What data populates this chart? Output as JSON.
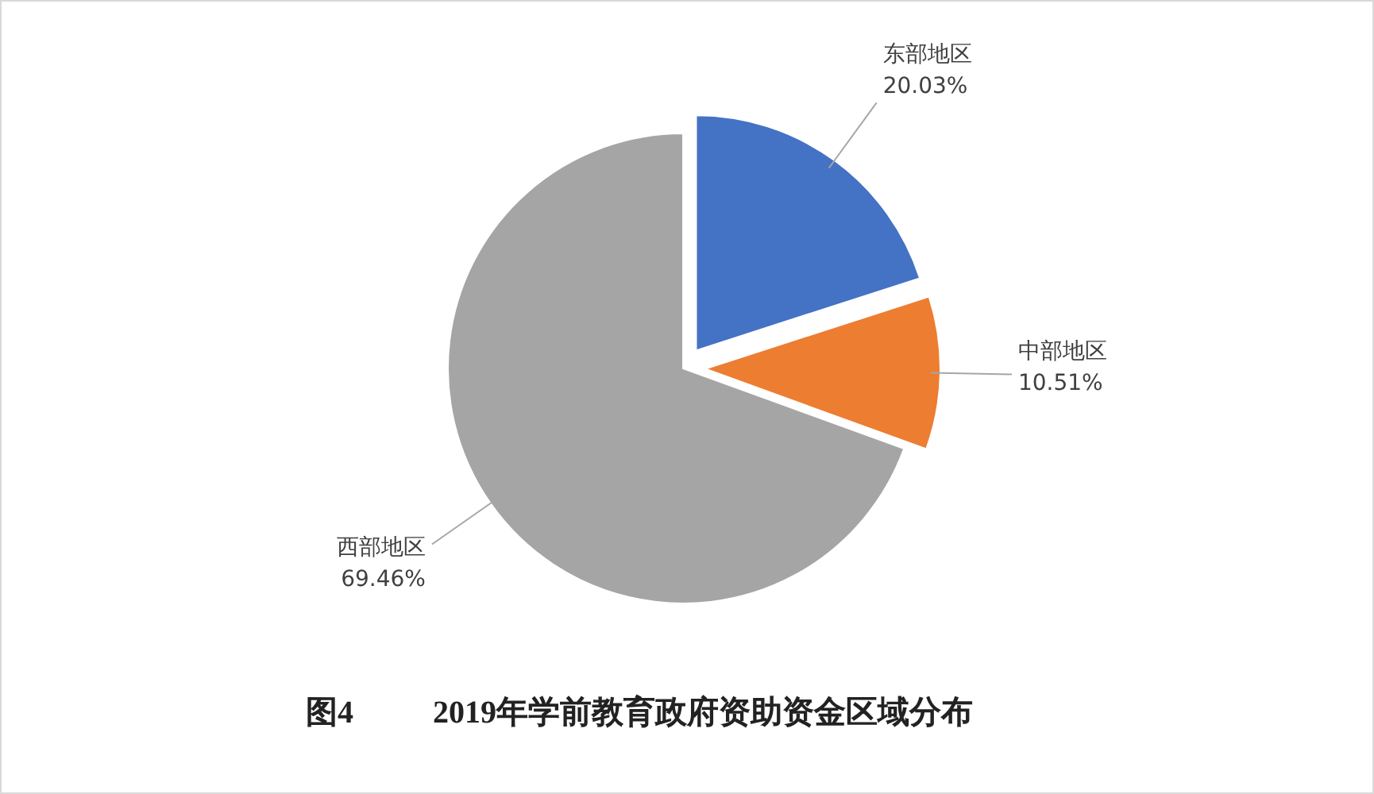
{
  "chart_data": {
    "type": "pie",
    "title": "图4          2019年学前教育政府资助资金区域分布",
    "categories": [
      "东部地区",
      "中部地区",
      "西部地区"
    ],
    "values": [
      20.03,
      10.51,
      69.46
    ],
    "colors": [
      "#4472c4",
      "#ed7d31",
      "#a5a5a5"
    ],
    "value_labels": [
      "20.03%",
      "10.51%",
      "69.46%"
    ]
  }
}
